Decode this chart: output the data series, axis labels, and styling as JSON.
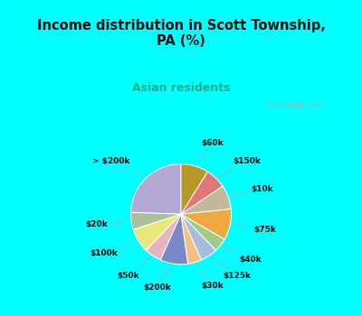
{
  "title": "Income distribution in Scott Township,\nPA (%)",
  "subtitle": "Asian residents",
  "title_color": "#111111",
  "subtitle_color": "#2aaa88",
  "bg_cyan": "#00ffff",
  "bg_chart": "#d8f0e8",
  "labels": [
    "> $200k",
    "$20k",
    "$100k",
    "$50k",
    "$200k",
    "$30k",
    "$125k",
    "$40k",
    "$75k",
    "$10k",
    "$150k",
    "$60k"
  ],
  "values": [
    22,
    5,
    7,
    5,
    8,
    4,
    5,
    4,
    9,
    7,
    6,
    8
  ],
  "colors": [
    "#b4a8d4",
    "#aac09a",
    "#e8e87a",
    "#e8b4c0",
    "#7888c8",
    "#f5c080",
    "#a8bce0",
    "#a0cc88",
    "#f0a840",
    "#c4b89a",
    "#e07878",
    "#b89828"
  ],
  "startangle": 90,
  "watermark": "  City-Data.com"
}
